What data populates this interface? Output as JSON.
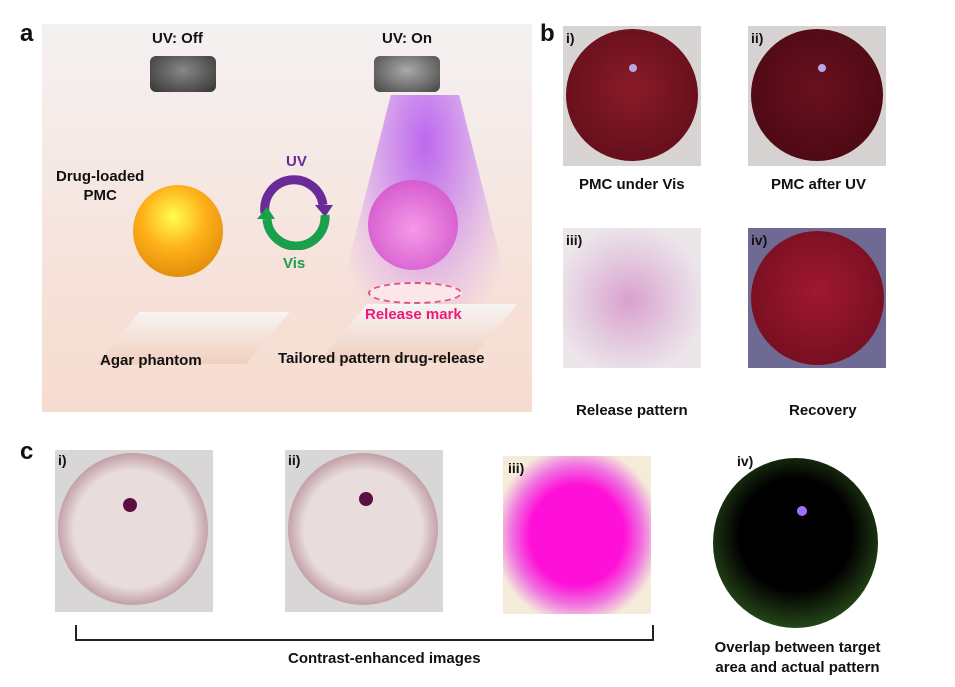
{
  "panel_a": {
    "label": "a",
    "uv_off": "UV: Off",
    "uv_on": "UV: On",
    "drug_loaded": "Drug-loaded",
    "pmc": "PMC",
    "cycle_uv": "UV",
    "cycle_vis": "Vis",
    "release_mark": "Release mark",
    "agar": "Agar phantom",
    "tailored": "Tailored pattern drug-release"
  },
  "panel_b": {
    "label": "b",
    "items": [
      {
        "index": "i)",
        "caption": "PMC under Vis"
      },
      {
        "index": "ii)",
        "caption": "PMC after UV"
      },
      {
        "index": "iii)",
        "caption": "Release pattern"
      },
      {
        "index": "iv)",
        "caption": "Recovery"
      }
    ]
  },
  "panel_c": {
    "label": "c",
    "items": [
      {
        "index": "i)"
      },
      {
        "index": "ii)"
      },
      {
        "index": "iii)"
      },
      {
        "index": "iv)"
      }
    ],
    "bracket_caption": "Contrast-enhanced images",
    "overlap_line1": "Overlap between target",
    "overlap_line2": "area and actual pattern"
  },
  "colors": {
    "uv": "#6a2a9a",
    "vis": "#1aa04a",
    "release": "#ee1a7a"
  }
}
